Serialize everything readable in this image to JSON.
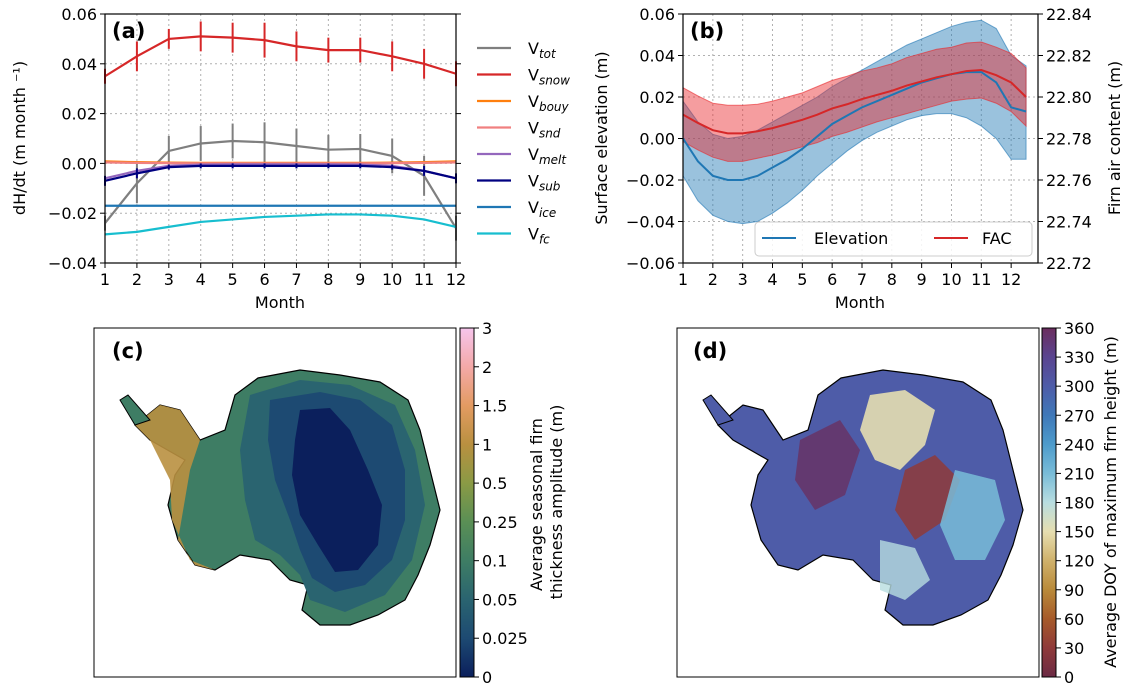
{
  "chart_data": [
    {
      "panel": "(a)",
      "type": "line",
      "xlabel": "Month",
      "ylabel": "dH/dt (m month ⁻¹)",
      "x": [
        1,
        2,
        3,
        4,
        5,
        6,
        7,
        8,
        9,
        10,
        11,
        12
      ],
      "xticks": [
        "1",
        "2",
        "3",
        "4",
        "5",
        "6",
        "7",
        "8",
        "9",
        "10",
        "11",
        "12"
      ],
      "ylim": [
        -0.04,
        0.06
      ],
      "yticks": [
        "−0.04",
        "−0.02",
        "0.00",
        "0.02",
        "0.04",
        "0.06"
      ],
      "ytick_values": [
        -0.04,
        -0.02,
        0,
        0.02,
        0.04,
        0.06
      ],
      "grid": true,
      "legend_position": "outside-right",
      "series": [
        {
          "name": "V",
          "sub": "tot",
          "color": "#7f7f7f",
          "values": [
            -0.024,
            -0.008,
            0.005,
            0.008,
            0.009,
            0.0085,
            0.007,
            0.0055,
            0.0058,
            0.003,
            -0.005,
            -0.026
          ],
          "err": [
            0.003,
            0.008,
            0.006,
            0.007,
            0.007,
            0.008,
            0.007,
            0.006,
            0.006,
            0.007,
            0.008,
            0.005
          ]
        },
        {
          "name": "V",
          "sub": "snow",
          "color": "#d62728",
          "values": [
            0.035,
            0.043,
            0.05,
            0.051,
            0.0505,
            0.0495,
            0.047,
            0.0455,
            0.0455,
            0.043,
            0.04,
            0.036
          ],
          "err": [
            0.003,
            0.006,
            0.004,
            0.006,
            0.006,
            0.007,
            0.006,
            0.005,
            0.005,
            0.006,
            0.006,
            0.005
          ]
        },
        {
          "name": "V",
          "sub": "bouy",
          "color": "#ff7f0e",
          "values": [
            0.0008,
            0.0005,
            0.0003,
            0.0002,
            0.0002,
            0.0002,
            0.0002,
            0.0002,
            0.0002,
            0.0003,
            0.0005,
            0.0008
          ]
        },
        {
          "name": "V",
          "sub": "snd",
          "color": "#f08080",
          "values": [
            0.0004,
            0.0002,
            0.0001,
            0,
            0,
            0,
            0,
            0,
            0,
            0.0001,
            0.0002,
            0.0004
          ]
        },
        {
          "name": "V",
          "sub": "melt",
          "color": "#9467bd",
          "values": [
            -0.006,
            -0.003,
            -0.001,
            -0.0005,
            -0.0004,
            -0.0004,
            -0.0004,
            -0.0004,
            -0.0005,
            -0.001,
            -0.003,
            -0.006
          ]
        },
        {
          "name": "V",
          "sub": "sub",
          "color": "#000080",
          "values": [
            -0.007,
            -0.004,
            -0.0015,
            -0.001,
            -0.001,
            -0.001,
            -0.001,
            -0.001,
            -0.001,
            -0.0015,
            -0.003,
            -0.006
          ],
          "err": [
            0.002,
            0.002,
            0.001,
            0.001,
            0.001,
            0.001,
            0.001,
            0.001,
            0.001,
            0.001,
            0.002,
            0.002
          ]
        },
        {
          "name": "V",
          "sub": "ice",
          "color": "#1f77b4",
          "values": [
            -0.017,
            -0.017,
            -0.017,
            -0.017,
            -0.017,
            -0.017,
            -0.017,
            -0.017,
            -0.017,
            -0.017,
            -0.017,
            -0.017
          ]
        },
        {
          "name": "V",
          "sub": "fc",
          "color": "#17becf",
          "values": [
            -0.0285,
            -0.0275,
            -0.0255,
            -0.0235,
            -0.0225,
            -0.0215,
            -0.021,
            -0.0205,
            -0.0205,
            -0.021,
            -0.0225,
            -0.0255
          ]
        }
      ]
    },
    {
      "panel": "(b)",
      "type": "line",
      "xlabel": "Month",
      "ylabel": "Surface elevation (m)",
      "ylabel_right": "Firn air content (m)",
      "x": [
        1,
        1.5,
        2,
        2.5,
        3,
        3.5,
        4,
        4.5,
        5,
        5.5,
        6,
        6.5,
        7,
        7.5,
        8,
        8.5,
        9,
        9.5,
        10,
        10.5,
        11,
        11.5,
        12,
        12.5
      ],
      "xticks": [
        "1",
        "2",
        "3",
        "4",
        "5",
        "6",
        "7",
        "8",
        "9",
        "10",
        "11",
        "12"
      ],
      "ylim": [
        -0.06,
        0.06
      ],
      "yticks": [
        "−0.06",
        "−0.04",
        "−0.02",
        "0.00",
        "0.02",
        "0.04",
        "0.06"
      ],
      "ytick_values": [
        -0.06,
        -0.04,
        -0.02,
        0,
        0.02,
        0.04,
        0.06
      ],
      "ylim_right": [
        22.72,
        22.84
      ],
      "yticks_right": [
        "22.72",
        "22.74",
        "22.76",
        "22.78",
        "22.80",
        "22.82",
        "22.84"
      ],
      "ytick_values_right": [
        22.72,
        22.74,
        22.76,
        22.78,
        22.8,
        22.82,
        22.84
      ],
      "grid": true,
      "legend_position": "lower-right",
      "series": [
        {
          "name": "Elevation",
          "color": "#1f77b4",
          "values": [
            0,
            -0.011,
            -0.018,
            -0.02,
            -0.02,
            -0.018,
            -0.014,
            -0.01,
            -0.005,
            0.001,
            0.007,
            0.011,
            0.015,
            0.018,
            0.021,
            0.024,
            0.027,
            0.029,
            0.031,
            0.032,
            0.032,
            0.027,
            0.015,
            0.013
          ],
          "lower": [
            -0.018,
            -0.03,
            -0.037,
            -0.04,
            -0.041,
            -0.04,
            -0.036,
            -0.031,
            -0.025,
            -0.018,
            -0.012,
            -0.006,
            -0.001,
            0.003,
            0.006,
            0.009,
            0.011,
            0.012,
            0.012,
            0.01,
            0.006,
            0.0,
            -0.01,
            -0.01
          ],
          "upper": [
            0.018,
            0.008,
            0.002,
            0.0,
            0.001,
            0.004,
            0.008,
            0.012,
            0.016,
            0.02,
            0.025,
            0.029,
            0.033,
            0.037,
            0.041,
            0.045,
            0.048,
            0.051,
            0.054,
            0.056,
            0.057,
            0.053,
            0.04,
            0.035
          ]
        },
        {
          "name": "FAC",
          "color": "#d62728",
          "values": [
            22.7915,
            22.7875,
            22.784,
            22.7825,
            22.7825,
            22.7835,
            22.785,
            22.787,
            22.789,
            22.7915,
            22.7945,
            22.7965,
            22.799,
            22.801,
            22.803,
            22.8055,
            22.8075,
            22.8095,
            22.811,
            22.8125,
            22.813,
            22.8105,
            22.807,
            22.8
          ],
          "lower": [
            22.7785,
            22.7745,
            22.771,
            22.769,
            22.769,
            22.7705,
            22.772,
            22.774,
            22.776,
            22.778,
            22.781,
            22.783,
            22.7855,
            22.788,
            22.79,
            22.792,
            22.794,
            22.796,
            22.798,
            22.799,
            22.7995,
            22.797,
            22.793,
            22.786
          ],
          "upper": [
            22.8045,
            22.8005,
            22.797,
            22.796,
            22.796,
            22.7965,
            22.798,
            22.8,
            22.802,
            22.805,
            22.808,
            22.81,
            22.8125,
            22.814,
            22.816,
            22.819,
            22.821,
            22.823,
            22.824,
            22.826,
            22.8265,
            22.824,
            22.821,
            22.814
          ]
        }
      ]
    },
    {
      "panel": "(c)",
      "type": "heatmap",
      "colorbar_label": "Average seasonal firn\nthickness amplitude (m)",
      "colorbar_ticks": [
        "0",
        "0.025",
        "0.05",
        "0.1",
        "0.25",
        "0.5",
        "1",
        "1.5",
        "2",
        "3"
      ],
      "colorbar_colors": [
        "#0b1f5c",
        "#1d4a72",
        "#2a6470",
        "#3e7d64",
        "#5a8f55",
        "#8a9a45",
        "#b99040",
        "#e39b62",
        "#f4a9a8",
        "#f6c5ec"
      ]
    },
    {
      "panel": "(d)",
      "type": "heatmap",
      "colorbar_label": "Average DOY of maximum firn height (m)",
      "colorbar_ticks": [
        "0",
        "30",
        "60",
        "90",
        "120",
        "150",
        "180",
        "210",
        "240",
        "270",
        "300",
        "330",
        "360"
      ],
      "colorbar_colors": [
        "#6b2a44",
        "#8f3a3a",
        "#a65a2a",
        "#b98a3a",
        "#cfb16b",
        "#e6deb0",
        "#b8dde0",
        "#79bcd8",
        "#4d9bcb",
        "#3f78b8",
        "#4e5ca8",
        "#5a4490",
        "#6b2d5e"
      ]
    }
  ]
}
